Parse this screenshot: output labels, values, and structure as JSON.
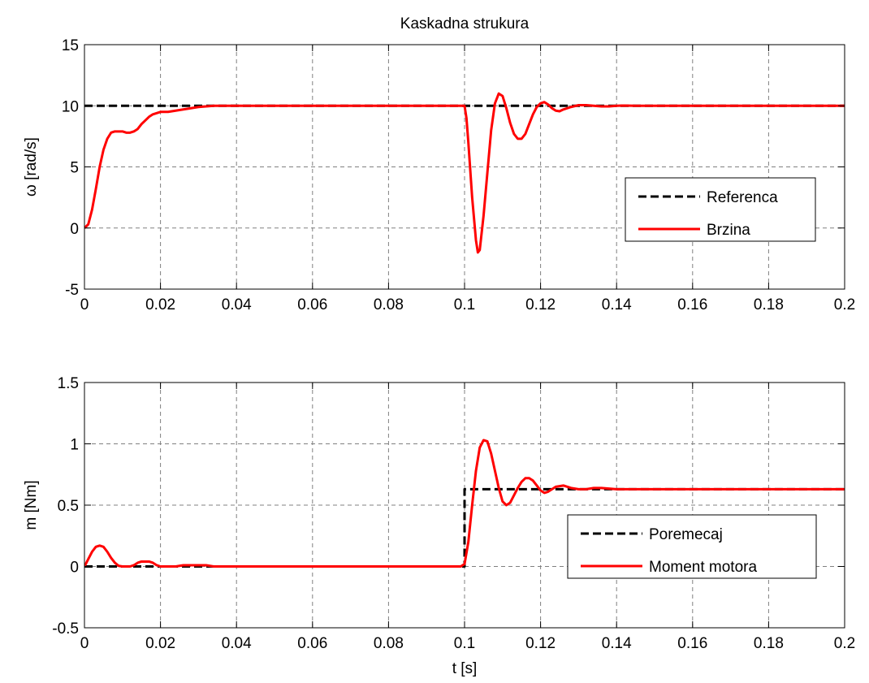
{
  "chart_data": [
    {
      "type": "line",
      "title": "Kaskadna strukura",
      "xlabel": "",
      "ylabel": "ω [rad/s]",
      "xlim": [
        0,
        0.2
      ],
      "ylim": [
        -5,
        15
      ],
      "xticks": [
        "0",
        "0.02",
        "0.04",
        "0.06",
        "0.08",
        "0.1",
        "0.12",
        "0.14",
        "0.16",
        "0.18",
        "0.2"
      ],
      "yticks": [
        "-5",
        "0",
        "5",
        "10",
        "15"
      ],
      "grid": true,
      "legend_position": "center-right",
      "series": [
        {
          "name": "Referenca",
          "color": "#000000",
          "style": "dashed",
          "x": [
            0,
            0.2
          ],
          "y": [
            10,
            10
          ]
        },
        {
          "name": "Brzina",
          "color": "#ff0000",
          "style": "solid",
          "x": [
            0,
            0.001,
            0.002,
            0.003,
            0.004,
            0.005,
            0.006,
            0.007,
            0.008,
            0.009,
            0.01,
            0.011,
            0.012,
            0.013,
            0.014,
            0.015,
            0.016,
            0.017,
            0.018,
            0.019,
            0.02,
            0.022,
            0.024,
            0.026,
            0.028,
            0.03,
            0.032,
            0.034,
            0.04,
            0.05,
            0.06,
            0.07,
            0.08,
            0.09,
            0.1,
            0.1005,
            0.101,
            0.102,
            0.103,
            0.1035,
            0.104,
            0.105,
            0.106,
            0.107,
            0.108,
            0.109,
            0.11,
            0.111,
            0.112,
            0.113,
            0.114,
            0.115,
            0.116,
            0.117,
            0.118,
            0.119,
            0.12,
            0.121,
            0.122,
            0.123,
            0.124,
            0.125,
            0.126,
            0.128,
            0.13,
            0.132,
            0.134,
            0.136,
            0.138,
            0.14,
            0.142,
            0.145,
            0.15,
            0.16,
            0.17,
            0.18,
            0.19,
            0.2
          ],
          "y": [
            0,
            0.3,
            1.5,
            3.2,
            5,
            6.4,
            7.3,
            7.8,
            7.9,
            7.9,
            7.9,
            7.8,
            7.8,
            7.9,
            8.1,
            8.5,
            8.8,
            9.1,
            9.3,
            9.4,
            9.5,
            9.5,
            9.6,
            9.7,
            9.8,
            9.9,
            9.95,
            10,
            10,
            10,
            10,
            10,
            10,
            10,
            10,
            9,
            7,
            2.5,
            -1,
            -2,
            -1.8,
            1,
            4.5,
            8,
            10.2,
            11,
            10.8,
            9.8,
            8.6,
            7.7,
            7.3,
            7.3,
            7.7,
            8.5,
            9.3,
            9.9,
            10.2,
            10.3,
            10.1,
            9.8,
            9.6,
            9.55,
            9.7,
            9.9,
            10.05,
            10.05,
            10,
            9.95,
            9.95,
            10,
            10.02,
            10,
            10,
            10,
            10,
            10,
            10,
            10
          ]
        }
      ]
    },
    {
      "type": "line",
      "title": "",
      "xlabel": "t [s]",
      "ylabel": "m [Nm]",
      "xlim": [
        0,
        0.2
      ],
      "ylim": [
        -0.5,
        1.5
      ],
      "xticks": [
        "0",
        "0.02",
        "0.04",
        "0.06",
        "0.08",
        "0.1",
        "0.12",
        "0.14",
        "0.16",
        "0.18",
        "0.2"
      ],
      "yticks": [
        "-0.5",
        "0",
        "0.5",
        "1",
        "1.5"
      ],
      "grid": true,
      "legend_position": "bottom-right",
      "series": [
        {
          "name": "Poremecaj",
          "color": "#000000",
          "style": "dashed",
          "x": [
            0,
            0.1,
            0.1,
            0.2
          ],
          "y": [
            0,
            0,
            0.63,
            0.63
          ]
        },
        {
          "name": "Moment motora",
          "color": "#ff0000",
          "style": "solid",
          "x": [
            0,
            0.001,
            0.002,
            0.003,
            0.004,
            0.005,
            0.006,
            0.007,
            0.008,
            0.009,
            0.01,
            0.011,
            0.012,
            0.013,
            0.014,
            0.015,
            0.016,
            0.017,
            0.018,
            0.019,
            0.02,
            0.022,
            0.024,
            0.026,
            0.028,
            0.03,
            0.032,
            0.034,
            0.04,
            0.06,
            0.08,
            0.099,
            0.1,
            0.101,
            0.102,
            0.103,
            0.104,
            0.105,
            0.106,
            0.107,
            0.108,
            0.109,
            0.11,
            0.111,
            0.112,
            0.113,
            0.114,
            0.115,
            0.116,
            0.117,
            0.118,
            0.119,
            0.12,
            0.121,
            0.122,
            0.123,
            0.124,
            0.126,
            0.128,
            0.13,
            0.132,
            0.134,
            0.136,
            0.14,
            0.145,
            0.15,
            0.16,
            0.17,
            0.18,
            0.19,
            0.2
          ],
          "y": [
            0,
            0.06,
            0.12,
            0.16,
            0.17,
            0.16,
            0.12,
            0.07,
            0.03,
            0.005,
            0,
            0,
            0,
            0.01,
            0.03,
            0.04,
            0.04,
            0.04,
            0.03,
            0.01,
            0,
            0,
            0,
            0.01,
            0.01,
            0.01,
            0.01,
            0,
            0,
            0,
            0,
            0,
            0.02,
            0.2,
            0.5,
            0.78,
            0.97,
            1.03,
            1.02,
            0.92,
            0.78,
            0.64,
            0.53,
            0.5,
            0.52,
            0.58,
            0.64,
            0.69,
            0.72,
            0.72,
            0.7,
            0.66,
            0.62,
            0.6,
            0.61,
            0.63,
            0.65,
            0.66,
            0.64,
            0.63,
            0.63,
            0.64,
            0.64,
            0.63,
            0.63,
            0.63,
            0.63,
            0.63,
            0.63,
            0.63,
            0.63
          ]
        }
      ]
    }
  ]
}
